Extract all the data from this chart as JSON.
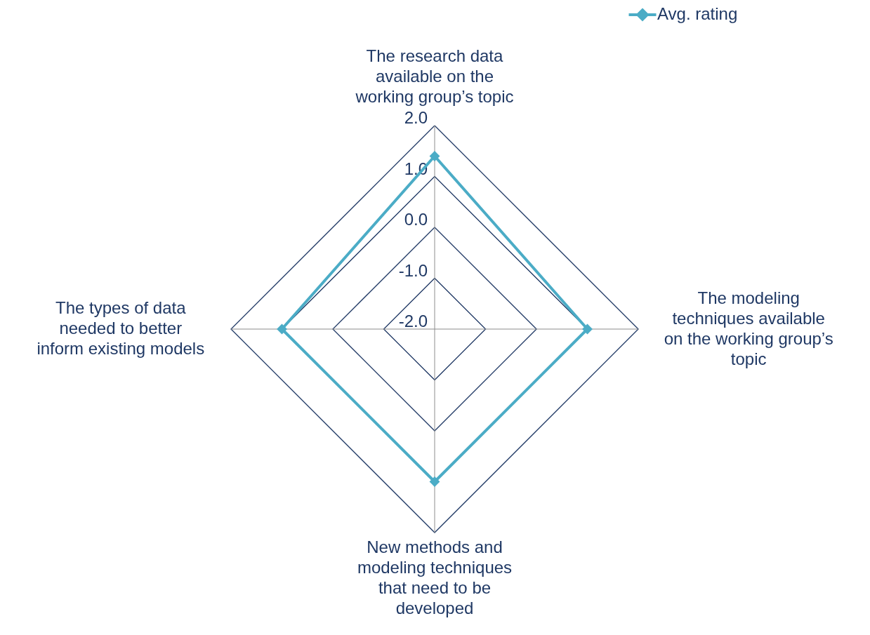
{
  "chart_data": {
    "type": "radar",
    "categories": [
      "The research data available on the working group’s topic",
      "The modeling techniques available on the working group’s topic",
      "New methods and modeling techniques that need to be developed",
      "The types of data needed to better inform existing models"
    ],
    "series": [
      {
        "name": "Avg. rating",
        "color": "#4bacc6",
        "values": [
          1.4,
          1.0,
          1.0,
          1.0
        ]
      }
    ],
    "ylim": [
      -2,
      2
    ],
    "yticks": [
      {
        "value": -2,
        "label": "-2.0"
      },
      {
        "value": -1,
        "label": "-1.0"
      },
      {
        "value": 0,
        "label": "0.0"
      },
      {
        "value": 1,
        "label": "1.0"
      },
      {
        "value": 2,
        "label": "2.0"
      }
    ],
    "marker": "diamond",
    "legend": "top right",
    "grid": true
  }
}
